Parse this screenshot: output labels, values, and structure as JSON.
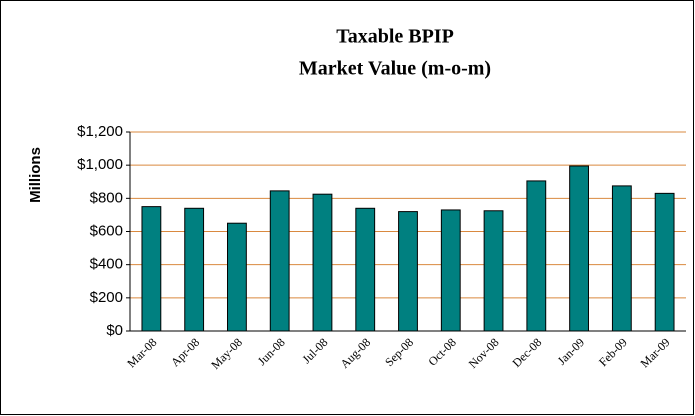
{
  "chart_data": {
    "type": "bar",
    "title": [
      "Taxable BPIP",
      "Market Value (m-o-m)"
    ],
    "ylabel": "Millions",
    "categories": [
      "Mar-08",
      "Apr-08",
      "May-08",
      "Jun-08",
      "Jul-08",
      "Aug-08",
      "Sep-08",
      "Oct-08",
      "Nov-08",
      "Dec-08",
      "Jan-09",
      "Feb-09",
      "Mar-09"
    ],
    "values": [
      750,
      740,
      650,
      845,
      825,
      740,
      720,
      730,
      725,
      905,
      995,
      875,
      830
    ],
    "color": "#008080",
    "ylim": [
      0,
      1200
    ],
    "yticks": [
      {
        "value": 0,
        "label": "$0"
      },
      {
        "value": 200,
        "label": "$200"
      },
      {
        "value": 400,
        "label": "$400"
      },
      {
        "value": 600,
        "label": "$600"
      },
      {
        "value": 800,
        "label": "$800"
      },
      {
        "value": 1000,
        "label": "$1,000"
      },
      {
        "value": 1200,
        "label": "$1,200"
      }
    ],
    "grid": true
  }
}
